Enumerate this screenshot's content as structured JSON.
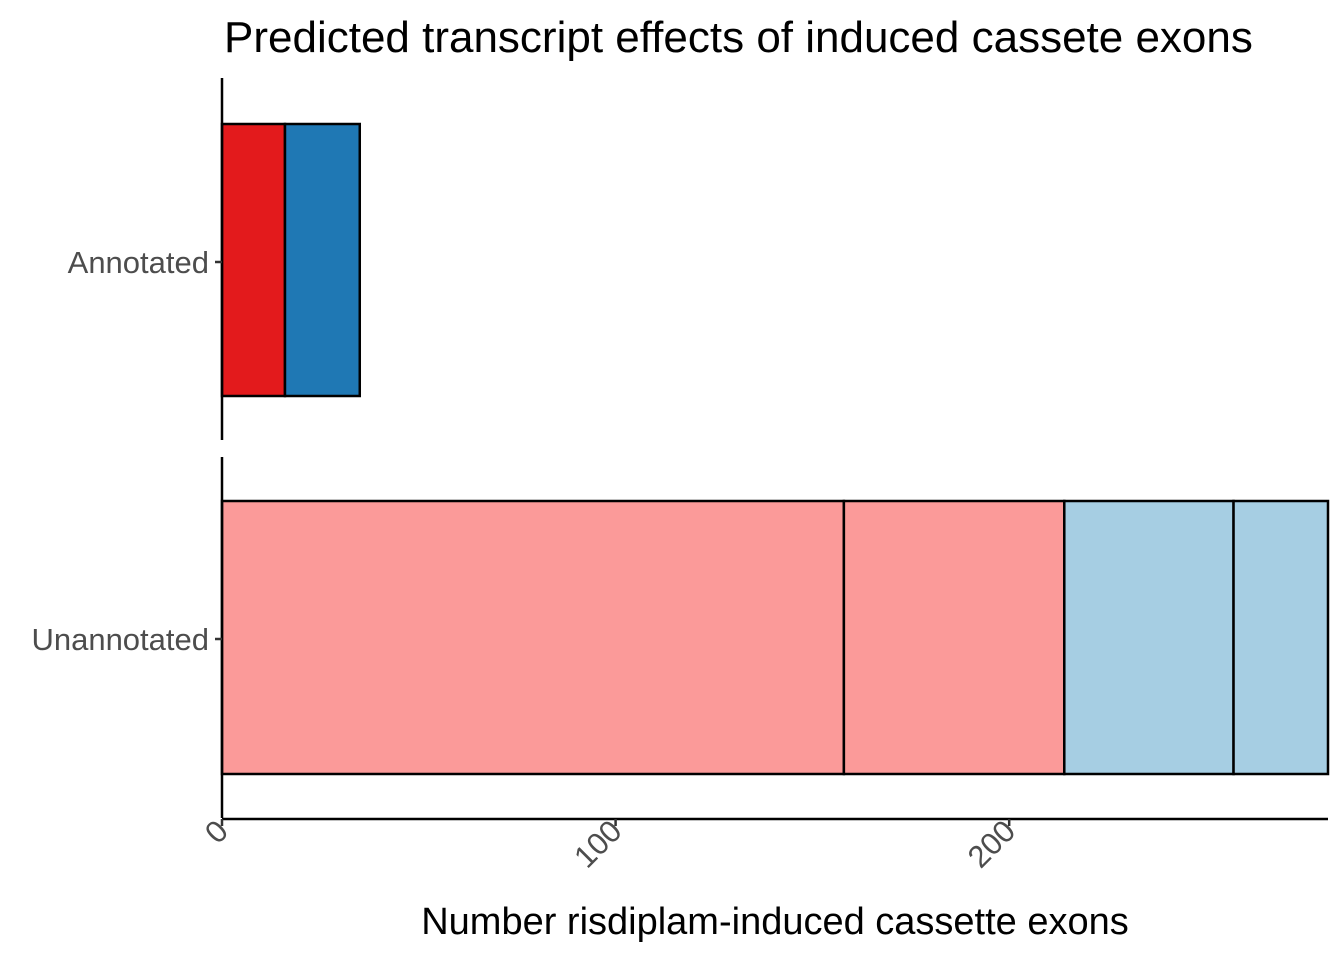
{
  "chart_data": {
    "type": "bar",
    "orientation": "horizontal",
    "stacked": true,
    "faceted": true,
    "title": "Predicted transcript effects of induced cassete exons",
    "xlabel": "Number risdiplam-induced cassette exons",
    "ylabel": "",
    "xlim": [
      0,
      281
    ],
    "x_ticks": [
      0,
      100,
      200
    ],
    "x_tick_labels": [
      "0",
      "100",
      "200"
    ],
    "grid": false,
    "legend": "none",
    "panels": [
      {
        "label": "Annotated",
        "segments": [
          {
            "value": 16,
            "color": "#e31a1c"
          },
          {
            "value": 19,
            "color": "#1f78b4"
          }
        ]
      },
      {
        "label": "Unannotated",
        "segments": [
          {
            "value": 158,
            "color": "#fb9a99"
          },
          {
            "value": 56,
            "color": "#fb9a99"
          },
          {
            "value": 43,
            "color": "#a6cee3"
          },
          {
            "value": 24,
            "color": "#a6cee3"
          }
        ]
      }
    ]
  }
}
